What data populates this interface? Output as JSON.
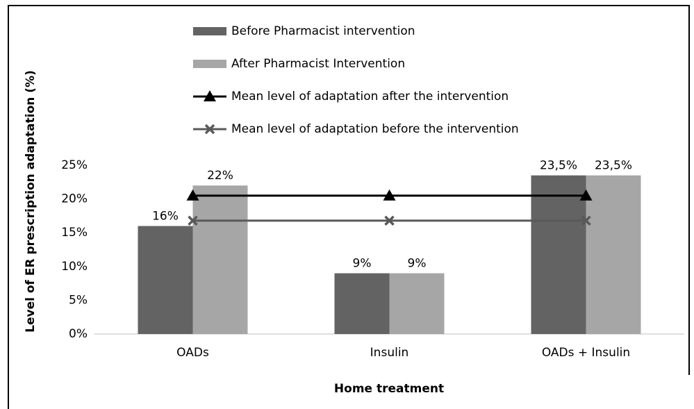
{
  "chart_data": {
    "type": "bar",
    "x_label": "Home treatment",
    "y_label": "Level of ER prescription adaptation (%)",
    "categories": [
      "OADs",
      "Insulin",
      "OADs + Insulin"
    ],
    "series": [
      {
        "name": "Before Pharmacist intervention",
        "color": "#636363",
        "values": [
          16,
          9,
          23.5
        ],
        "value_labels": [
          "16%",
          "9%",
          "23,5%"
        ]
      },
      {
        "name": "After Pharmacist Intervention",
        "color": "#a6a6a6",
        "values": [
          22,
          9,
          23.5
        ],
        "value_labels": [
          "22%",
          "9%",
          "23,5%"
        ]
      },
      {
        "name": "Mean level of adaptation after the intervention",
        "type": "line",
        "marker": "triangle",
        "color": "#000000",
        "values": [
          20.5,
          20.5,
          20.5
        ]
      },
      {
        "name": "Mean level of adaptation before the intervention",
        "type": "line",
        "marker": "x",
        "color": "#595959",
        "values": [
          16.8,
          16.8,
          16.8
        ]
      }
    ],
    "ylim": [
      0,
      25
    ],
    "yticks": [
      {
        "value": 0,
        "label": "0%"
      },
      {
        "value": 5,
        "label": "5%"
      },
      {
        "value": 10,
        "label": "10%"
      },
      {
        "value": 15,
        "label": "15%"
      },
      {
        "value": 20,
        "label": "20%"
      },
      {
        "value": 25,
        "label": "25%"
      }
    ],
    "grid": false,
    "legend": "top"
  }
}
